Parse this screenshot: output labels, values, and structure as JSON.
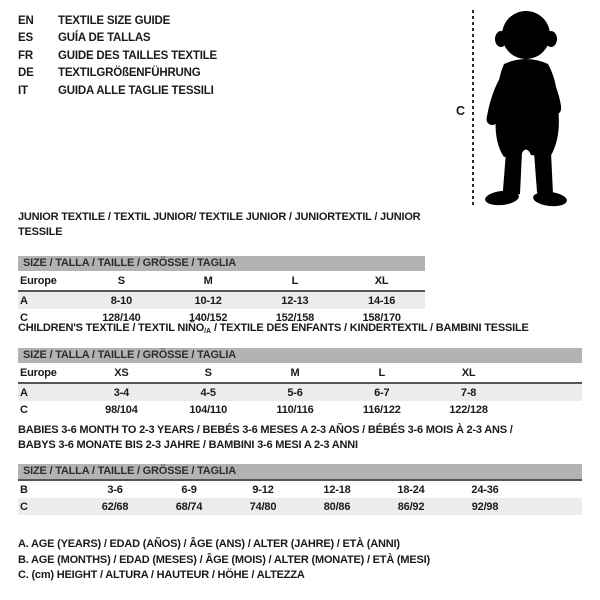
{
  "colors": {
    "background": "#ffffff",
    "bar_bg": "#b3b3b3",
    "alt_row_bg": "#ececec",
    "divider": "#555555",
    "text": "#1a1a1a"
  },
  "languages": [
    {
      "code": "EN",
      "title": "TEXTILE SIZE GUIDE"
    },
    {
      "code": "ES",
      "title": "GUÍA DE TALLAS"
    },
    {
      "code": "FR",
      "title": "GUIDE DES TAILLES TEXTILE"
    },
    {
      "code": "DE",
      "title": "TEXTILGRÖßENFÜHRUNG"
    },
    {
      "code": "IT",
      "title": "GUIDA ALLE TAGLIE TESSILI"
    }
  ],
  "figure": {
    "height_label": "C",
    "image_name": "toddler-silhouette"
  },
  "tables": [
    {
      "id": "junior",
      "title_lines": [
        [
          {
            "text": "JUNIOR TEXTILE / TEXTIL JUNIOR/ TEXTILE JUNIOR / JUNIORTEXTIL / JUNIOR TESSILE"
          }
        ]
      ],
      "size_header": "SIZE / TALLA / TAILLE / GRÖSSE / TAGLIA",
      "header_row": {
        "label": "Europe",
        "cells": [
          "S",
          "M",
          "L",
          "XL"
        ]
      },
      "data_rows": [
        {
          "label": "A",
          "cells": [
            "8-10",
            "10-12",
            "12-13",
            "14-16"
          ],
          "shaded": true
        },
        {
          "label": "C",
          "cells": [
            "128/140",
            "140/152",
            "152/158",
            "158/170"
          ],
          "shaded": false
        }
      ]
    },
    {
      "id": "children",
      "title_lines": [
        [
          {
            "text": "CHILDREN'S TEXTILE / TEXTIL NIÑO"
          },
          {
            "text": "/A",
            "sub": true
          },
          {
            "text": " / TEXTILE DES ENFANTS / KINDERTEXTIL / BAMBINI TESSILE"
          }
        ]
      ],
      "size_header": "SIZE / TALLA / TAILLE / GRÖSSE / TAGLIA",
      "header_row": {
        "label": "Europe",
        "cells": [
          "XS",
          "S",
          "M",
          "L",
          "XL"
        ]
      },
      "data_rows": [
        {
          "label": "A",
          "cells": [
            "3-4",
            "4-5",
            "5-6",
            "6-7",
            "7-8"
          ],
          "shaded": true
        },
        {
          "label": "C",
          "cells": [
            "98/104",
            "104/110",
            "110/116",
            "116/122",
            "122/128"
          ],
          "shaded": false
        }
      ]
    },
    {
      "id": "babies",
      "title_lines": [
        [
          {
            "text": "BABIES 3-6 MONTH TO 2-3 YEARS / BEBÉS 3-6 MESES A 2-3 AÑOS / BÉBÉS 3-6 MOIS À 2-3 ANS /"
          }
        ],
        [
          {
            "text": "BABYS 3-6 MONATE BIS 2-3 JAHRE / BAMBINI 3-6 MESI A 2-3 ANNI"
          }
        ]
      ],
      "size_header": "SIZE / TALLA / TAILLE / GRÖSSE / TAGLIA",
      "header_row": null,
      "data_rows": [
        {
          "label": "B",
          "cells": [
            "3-6",
            "6-9",
            "9-12",
            "12-18",
            "18-24",
            "24-36"
          ],
          "shaded": false
        },
        {
          "label": "C",
          "cells": [
            "62/68",
            "68/74",
            "74/80",
            "80/86",
            "86/92",
            "92/98"
          ],
          "shaded": true
        }
      ]
    }
  ],
  "notes": [
    "A. AGE (YEARS) / EDAD (AÑOS) / ÂGE (ANS) / ALTER (JAHRE) / ETÀ (ANNI)",
    "B. AGE (MONTHS) / EDAD (MESES) / ÂGE (MOIS) / ALTER (MONATE) / ETÀ (MESI)",
    "C. (cm) HEIGHT / ALTURA / HAUTEUR / HÖHE / ALTEZZA"
  ]
}
